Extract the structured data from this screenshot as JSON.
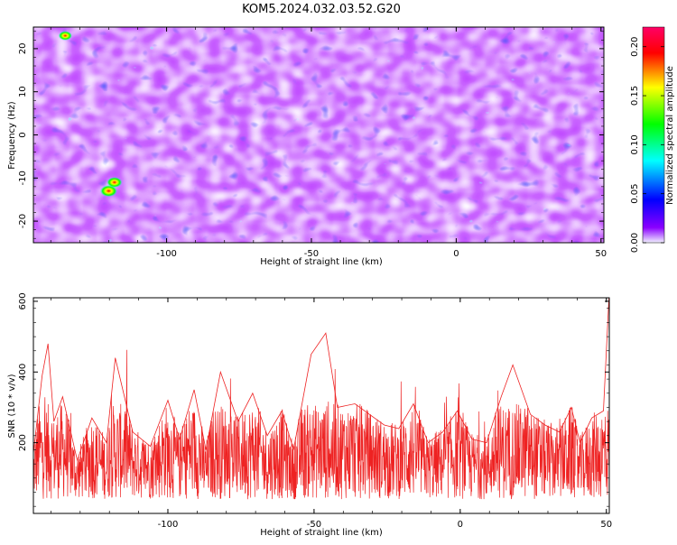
{
  "title": "KOM5.2024.032.03.52.G20",
  "chart_data": [
    {
      "type": "heatmap",
      "xlabel": "Height of straight line (km)",
      "ylabel": "Frequency (Hz)",
      "xlim": [
        -146,
        51
      ],
      "ylim": [
        -25,
        25
      ],
      "xticks": [
        -100,
        -50,
        0,
        50
      ],
      "yticks": [
        -20,
        -10,
        0,
        10,
        20
      ],
      "grid": false,
      "colorbar": {
        "label": "Normalized spectral amplitude",
        "range": [
          0,
          0.22
        ],
        "ticks": [
          "0.00",
          "0.05",
          "0.10",
          "0.15",
          "0.20"
        ],
        "colormap": [
          "#f2f2ff",
          "#8a00ff",
          "#0000ff",
          "#00ffff",
          "#00ff00",
          "#ffff00",
          "#ff0000",
          "#ff0066"
        ]
      },
      "hotspots": [
        {
          "x": -120,
          "y": -13,
          "value": 0.2
        },
        {
          "x": -118,
          "y": -11,
          "value": 0.16
        },
        {
          "x": -135,
          "y": 23,
          "value": 0.12
        }
      ]
    },
    {
      "type": "line",
      "xlabel": "Height of straight line (km)",
      "ylabel": "SNR (10 * v/v)",
      "xlim": [
        -146,
        51
      ],
      "ylim": [
        0,
        610
      ],
      "xticks": [
        -100,
        -50,
        0,
        50
      ],
      "yticks": [
        200,
        400,
        600
      ],
      "grid": false,
      "series": [
        {
          "color": "#ee2222",
          "x": [
            -146,
            -143,
            -141,
            -139,
            -136,
            -131,
            -126,
            -121,
            -118,
            -112,
            -106,
            -100,
            -96,
            -91,
            -87,
            -82,
            -76,
            -71,
            -66,
            -61,
            -57,
            -51,
            -46,
            -42,
            -36,
            -31,
            -26,
            -21,
            -16,
            -11,
            -6,
            -1,
            4,
            9,
            14,
            18,
            24,
            29,
            34,
            38,
            41,
            45,
            49,
            51
          ],
          "y": [
            170,
            390,
            480,
            260,
            330,
            150,
            270,
            200,
            440,
            230,
            190,
            320,
            210,
            350,
            180,
            400,
            260,
            340,
            220,
            290,
            180,
            450,
            510,
            300,
            310,
            280,
            250,
            240,
            310,
            200,
            230,
            290,
            210,
            200,
            330,
            420,
            280,
            250,
            230,
            300,
            200,
            270,
            290,
            630
          ]
        }
      ]
    }
  ]
}
